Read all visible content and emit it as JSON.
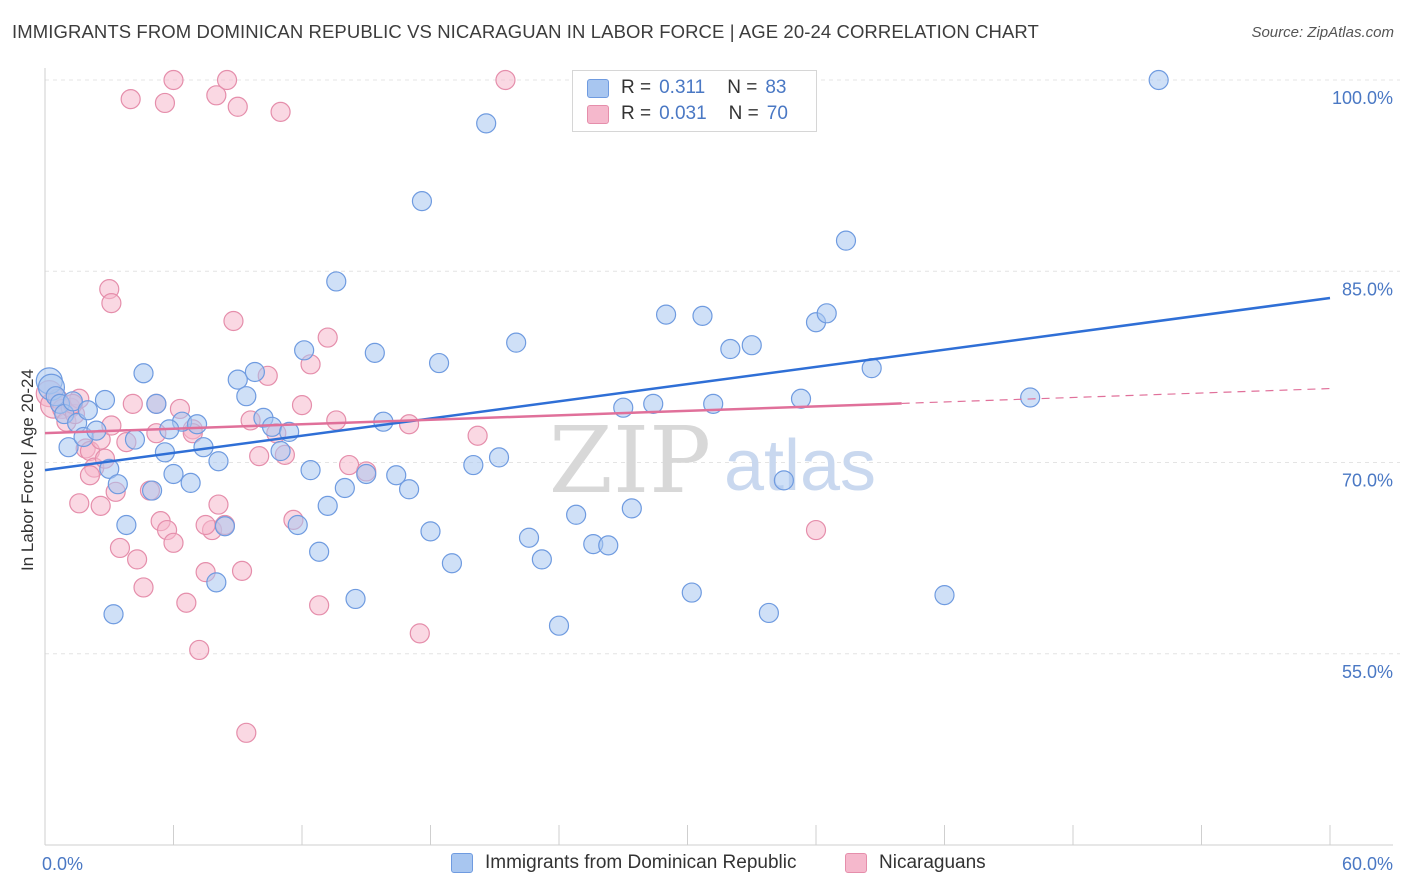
{
  "header": {
    "title": "IMMIGRANTS FROM DOMINICAN REPUBLIC VS NICARAGUAN IN LABOR FORCE | AGE 20-24 CORRELATION CHART",
    "source": "Source: ZipAtlas.com"
  },
  "colors": {
    "blue_fill": "#a8c6f0",
    "blue_stroke": "#6f9be0",
    "blue_line": "#2f6fd6",
    "pink_fill": "#f5b8cc",
    "pink_stroke": "#e58eab",
    "pink_line": "#e0709a",
    "axis_label": "#4a78c4",
    "grid": "#e4e4e4"
  },
  "legend": {
    "r_label": "R =",
    "n_label": "N =",
    "blue": {
      "r": "0.311",
      "n": "83"
    },
    "pink": {
      "r": "0.031",
      "n": "70"
    }
  },
  "watermark": {
    "part1": "ZIP",
    "part2": "atlas"
  },
  "chart_data": {
    "type": "scatter",
    "title": "IMMIGRANTS FROM DOMINICAN REPUBLIC VS NICARAGUAN IN LABOR FORCE | AGE 20-24 CORRELATION CHART",
    "xlabel": "",
    "ylabel": "In Labor Force | Age 20-24",
    "xlim": [
      0,
      60
    ],
    "ylim": [
      40,
      102
    ],
    "x_tick_labels": [
      "0.0%",
      "60.0%"
    ],
    "y_ticks": [
      55,
      70,
      85,
      100
    ],
    "y_tick_labels": [
      "55.0%",
      "70.0%",
      "85.0%",
      "100.0%"
    ],
    "grid": true,
    "legend_position": "top-center",
    "series": [
      {
        "name": "Immigrants from Dominican Republic",
        "color": "blue",
        "r": 0.311,
        "n": 83,
        "trend": {
          "x": [
            0,
            60
          ],
          "y": [
            69.4,
            82.9
          ],
          "dashed_from": null
        },
        "points": [
          [
            0.2,
            76.4
          ],
          [
            0.3,
            75.9
          ],
          [
            0.5,
            75.2
          ],
          [
            0.7,
            74.6
          ],
          [
            0.9,
            73.8
          ],
          [
            1.1,
            71.2
          ],
          [
            1.3,
            74.8
          ],
          [
            1.5,
            73.1
          ],
          [
            1.8,
            72.0
          ],
          [
            2.0,
            74.1
          ],
          [
            2.4,
            72.5
          ],
          [
            2.8,
            74.9
          ],
          [
            3.0,
            69.5
          ],
          [
            3.4,
            68.3
          ],
          [
            3.8,
            65.1
          ],
          [
            4.2,
            71.8
          ],
          [
            4.6,
            77.0
          ],
          [
            5.0,
            67.8
          ],
          [
            5.2,
            74.6
          ],
          [
            5.6,
            70.8
          ],
          [
            6.0,
            69.1
          ],
          [
            6.4,
            73.2
          ],
          [
            6.8,
            68.4
          ],
          [
            7.1,
            73.0
          ],
          [
            7.4,
            71.2
          ],
          [
            8.1,
            70.1
          ],
          [
            8.4,
            65.0
          ],
          [
            9.0,
            76.5
          ],
          [
            9.4,
            75.2
          ],
          [
            9.8,
            77.1
          ],
          [
            10.2,
            73.5
          ],
          [
            10.6,
            72.8
          ],
          [
            11.0,
            70.9
          ],
          [
            11.4,
            72.4
          ],
          [
            11.8,
            65.1
          ],
          [
            12.1,
            78.8
          ],
          [
            12.4,
            69.4
          ],
          [
            12.8,
            63.0
          ],
          [
            13.2,
            66.6
          ],
          [
            13.6,
            84.2
          ],
          [
            14.0,
            68.0
          ],
          [
            14.5,
            59.3
          ],
          [
            15.0,
            69.1
          ],
          [
            15.4,
            78.6
          ],
          [
            15.8,
            73.2
          ],
          [
            16.4,
            69.0
          ],
          [
            17.0,
            67.9
          ],
          [
            17.6,
            90.5
          ],
          [
            18.0,
            64.6
          ],
          [
            18.4,
            77.8
          ],
          [
            19.0,
            62.1
          ],
          [
            20.0,
            69.8
          ],
          [
            20.6,
            96.6
          ],
          [
            21.2,
            70.4
          ],
          [
            22.0,
            79.4
          ],
          [
            22.6,
            64.1
          ],
          [
            23.2,
            62.4
          ],
          [
            24.0,
            57.2
          ],
          [
            24.8,
            65.9
          ],
          [
            25.6,
            63.6
          ],
          [
            26.3,
            63.5
          ],
          [
            27.0,
            74.3
          ],
          [
            27.4,
            66.4
          ],
          [
            28.4,
            74.6
          ],
          [
            29.0,
            81.6
          ],
          [
            30.2,
            59.8
          ],
          [
            30.7,
            81.5
          ],
          [
            31.2,
            74.6
          ],
          [
            32.0,
            78.9
          ],
          [
            33.0,
            79.2
          ],
          [
            33.8,
            58.2
          ],
          [
            34.5,
            68.6
          ],
          [
            35.3,
            75.0
          ],
          [
            36.0,
            81.0
          ],
          [
            36.5,
            81.7
          ],
          [
            37.4,
            87.4
          ],
          [
            38.6,
            77.4
          ],
          [
            42.0,
            59.6
          ],
          [
            46.0,
            75.1
          ],
          [
            52.0,
            100.0
          ],
          [
            5.8,
            72.6
          ],
          [
            3.2,
            58.1
          ],
          [
            8.0,
            60.6
          ]
        ]
      },
      {
        "name": "Nicaraguans",
        "color": "pink",
        "r": 0.031,
        "n": 70,
        "trend": {
          "x": [
            0,
            60
          ],
          "y": [
            72.3,
            75.8
          ],
          "dashed_from": 40
        },
        "points": [
          [
            0.2,
            75.4
          ],
          [
            0.4,
            74.5
          ],
          [
            0.6,
            75.0
          ],
          [
            0.8,
            74.2
          ],
          [
            1.0,
            73.2
          ],
          [
            1.2,
            74.3
          ],
          [
            1.4,
            73.8
          ],
          [
            1.6,
            75.0
          ],
          [
            1.9,
            71.1
          ],
          [
            2.1,
            70.9
          ],
          [
            2.3,
            69.6
          ],
          [
            2.6,
            71.8
          ],
          [
            2.8,
            70.3
          ],
          [
            3.1,
            72.9
          ],
          [
            3.3,
            67.7
          ],
          [
            3.5,
            63.3
          ],
          [
            3.8,
            71.6
          ],
          [
            4.1,
            74.6
          ],
          [
            4.3,
            62.4
          ],
          [
            4.6,
            60.2
          ],
          [
            4.9,
            67.8
          ],
          [
            5.2,
            72.3
          ],
          [
            5.4,
            65.4
          ],
          [
            5.7,
            64.7
          ],
          [
            6.0,
            63.7
          ],
          [
            6.3,
            74.2
          ],
          [
            6.6,
            59.0
          ],
          [
            6.9,
            72.6
          ],
          [
            7.2,
            55.3
          ],
          [
            7.5,
            61.4
          ],
          [
            7.8,
            64.7
          ],
          [
            8.1,
            66.7
          ],
          [
            8.4,
            65.1
          ],
          [
            8.8,
            81.1
          ],
          [
            9.2,
            61.5
          ],
          [
            9.6,
            73.3
          ],
          [
            10.0,
            70.5
          ],
          [
            10.4,
            76.8
          ],
          [
            10.8,
            72.3
          ],
          [
            11.2,
            70.6
          ],
          [
            11.6,
            65.5
          ],
          [
            12.0,
            74.5
          ],
          [
            12.4,
            77.7
          ],
          [
            12.8,
            58.8
          ],
          [
            13.2,
            79.8
          ],
          [
            13.6,
            73.3
          ],
          [
            14.2,
            69.8
          ],
          [
            15.0,
            69.3
          ],
          [
            17.0,
            73.0
          ],
          [
            17.5,
            56.6
          ],
          [
            20.2,
            72.1
          ],
          [
            4.0,
            98.5
          ],
          [
            3.0,
            83.6
          ],
          [
            8.0,
            98.8
          ],
          [
            5.6,
            98.2
          ],
          [
            9.0,
            97.9
          ],
          [
            11.0,
            97.5
          ],
          [
            21.5,
            100.0
          ],
          [
            6.0,
            100.0
          ],
          [
            8.5,
            100.0
          ],
          [
            36.0,
            64.7
          ],
          [
            3.1,
            82.5
          ],
          [
            1.6,
            66.8
          ],
          [
            2.6,
            66.6
          ],
          [
            5.2,
            74.6
          ],
          [
            7.5,
            65.1
          ],
          [
            9.4,
            48.8
          ],
          [
            2.1,
            69.0
          ],
          [
            6.9,
            72.3
          ],
          [
            1.3,
            74.6
          ]
        ]
      }
    ]
  },
  "bottom_legend": {
    "blue_label": "Immigrants from Dominican Republic",
    "pink_label": "Nicaraguans"
  }
}
